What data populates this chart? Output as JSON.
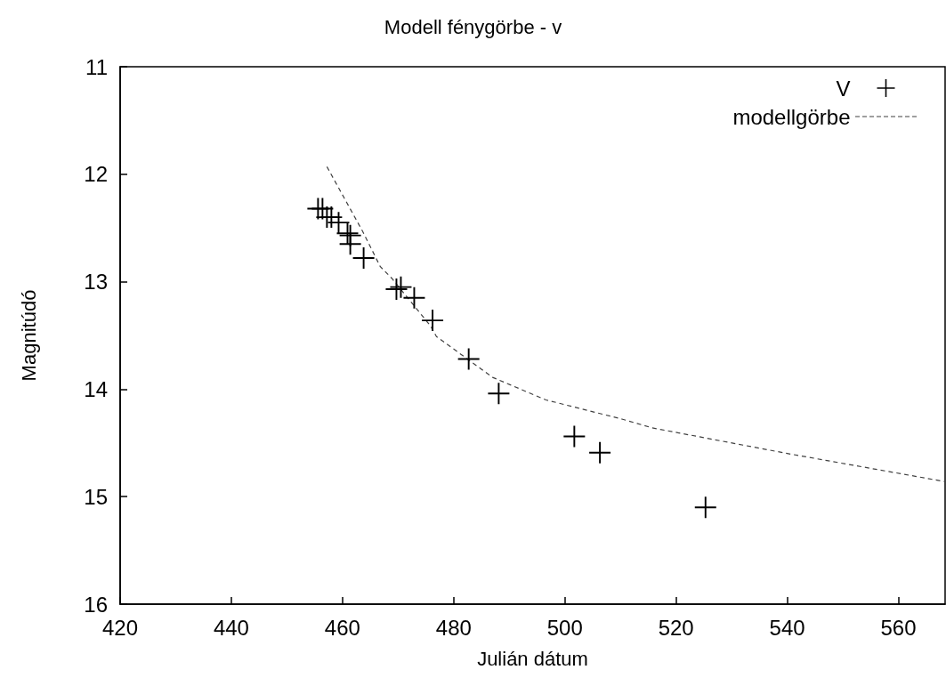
{
  "chart_data": {
    "type": "scatter",
    "title": "Modell fénygörbe - v",
    "xlabel": "Julián dátum",
    "ylabel": "Magnitúdó",
    "series": [
      {
        "name": "V",
        "type": "scatter",
        "marker": "cross",
        "color": "#000000",
        "x": [
          455.6,
          456.4,
          457.2,
          458.0,
          459.3,
          460.9,
          461.4,
          461.4,
          463.8,
          469.7,
          470.5,
          472.9,
          476.2,
          482.7,
          488.1,
          501.7,
          506.3,
          525.3
        ],
        "values": [
          12.32,
          12.32,
          12.4,
          12.4,
          12.45,
          12.55,
          12.57,
          12.65,
          12.78,
          13.07,
          13.05,
          13.15,
          13.36,
          13.72,
          14.04,
          14.44,
          14.59,
          15.1
        ]
      },
      {
        "name": "modellgörbe",
        "type": "line",
        "marker": "none",
        "line_style": "dashed",
        "color": "#404040",
        "x": [
          457.2,
          463.6,
          466.8,
          468.9,
          475.8,
          476.9,
          487.0,
          496.6,
          510.4,
          515.7,
          540.2,
          568.4
        ],
        "values": [
          11.93,
          12.53,
          12.86,
          12.97,
          13.41,
          13.51,
          13.89,
          14.1,
          14.28,
          14.36,
          14.6,
          14.86
        ]
      }
    ],
    "xlim": [
      420,
      568.4
    ],
    "xticks": [
      420,
      440,
      460,
      480,
      500,
      520,
      540,
      560
    ],
    "ylim": [
      16,
      11
    ],
    "yticks": [
      11,
      12,
      13,
      14,
      15,
      16
    ],
    "grid": false,
    "legend": "top right"
  }
}
